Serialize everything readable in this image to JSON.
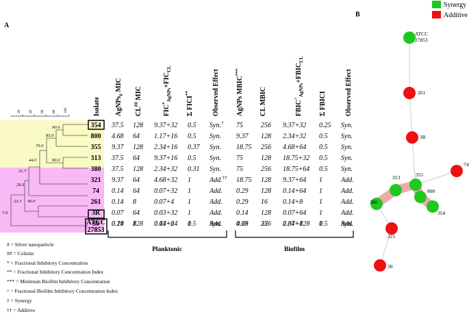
{
  "panels": {
    "a": "A",
    "b": "B"
  },
  "legend_top": {
    "synergy": {
      "label": "Synergy",
      "color": "#1fc81f"
    },
    "additive": {
      "label": "Additive",
      "color": "#ee1111"
    }
  },
  "colors": {
    "yellow_band": "#fafac4",
    "pink_band": "#f9b8f6",
    "highlight": "#f1a9a9"
  },
  "dendro_scale": [
    "20",
    "40",
    "60",
    "80",
    "100"
  ],
  "headers": {
    "isolate": "Isolate",
    "ag_mic": {
      "main": "AgNPs",
      "sub": "#",
      "tail": " MIC"
    },
    "cl_mic": {
      "main": "CL",
      "sup": "##",
      "tail": " MIC"
    },
    "fic": {
      "main": "FIC",
      "sup": "*",
      "sub1": "AgNPs",
      "mid": "+FIC",
      "sub2": "CL"
    },
    "fici": {
      "main": "Σ FICI",
      "sup": "**"
    },
    "obs1": "Observed Effect",
    "ag_mbic": {
      "main": "AgNPs MBIC",
      "sup": "***"
    },
    "cl_mbic": "CL MBIC",
    "fbic": {
      "main": "FBIC",
      "sup": "^",
      "sub1": "AgNPs",
      "mid": "+FBIC",
      "sub2": "CL"
    },
    "fbici": "Σ FBICI",
    "obs2": "Observed Effect"
  },
  "rows": [
    {
      "isolate": "354",
      "ag_mic": "37.5",
      "cl_mic": "128",
      "fic": "9.37+32",
      "fici": "0.5",
      "obs": "Syn.",
      "obs_mark": "†",
      "ag_mbic": "75",
      "cl_mbic": "256",
      "fbic": "9.37+32",
      "fbici": "0.25",
      "obs2": "Syn."
    },
    {
      "isolate": "800",
      "ag_mic": "4.68",
      "cl_mic": "64",
      "fic": "1.17+16",
      "fici": "0.5",
      "obs": "Syn.",
      "obs_mark": "",
      "ag_mbic": "9.37",
      "cl_mbic": "128",
      "fbic": "2.34+32",
      "fbici": "0.5",
      "obs2": "Syn."
    },
    {
      "isolate": "355",
      "ag_mic": "9.37",
      "cl_mic": "128",
      "fic": "2.34+16",
      "fici": "0.37",
      "obs": "Syn.",
      "obs_mark": "",
      "ag_mbic": "18.75",
      "cl_mbic": "256",
      "fbic": "4.68+64",
      "fbici": "0.5",
      "obs2": "Syn."
    },
    {
      "isolate": "313",
      "ag_mic": "37.5",
      "cl_mic": "64",
      "fic": "9.37+16",
      "fici": "0.5",
      "obs": "Syn.",
      "obs_mark": "",
      "ag_mbic": "75",
      "cl_mbic": "128",
      "fbic": "18.75+32",
      "fbici": "0.5",
      "obs2": "Syn."
    },
    {
      "isolate": "380",
      "ag_mic": "37.5",
      "cl_mic": "128",
      "fic": "2.34+32",
      "fici": "0.31",
      "obs": "Syn.",
      "obs_mark": "",
      "ag_mbic": "75",
      "cl_mbic": "256",
      "fbic": "18.75+64",
      "fbici": "0.5",
      "obs2": "Syn."
    },
    {
      "isolate": "321",
      "ag_mic": "9.37",
      "cl_mic": "64",
      "fic": "4.68+32",
      "fici": "1",
      "obs": "Add.",
      "obs_mark": "††",
      "ag_mbic": "18.75",
      "cl_mbic": "128",
      "fbic": "9.37+64",
      "fbici": "1",
      "obs2": "Add."
    },
    {
      "isolate": "74",
      "ag_mic": "0.14",
      "cl_mic": "64",
      "fic": "0.07+32",
      "fici": "1",
      "obs": "Add.",
      "obs_mark": "",
      "ag_mbic": "0.29",
      "cl_mbic": "128",
      "fbic": "0.14+64",
      "fbici": "1",
      "obs2": "Add."
    },
    {
      "isolate": "261",
      "ag_mic": "0.14",
      "cl_mic": "8",
      "fic": "0.07+4",
      "fici": "1",
      "obs": "Add.",
      "obs_mark": "",
      "ag_mbic": "0.29",
      "cl_mbic": "16",
      "fbic": "0.14+8",
      "fbici": "1",
      "obs2": "Add."
    },
    {
      "isolate": "3R",
      "ag_mic": "0.07",
      "cl_mic": "64",
      "fic": "0.03+32",
      "fici": "1",
      "obs": "Add.",
      "obs_mark": "",
      "ag_mbic": "0.14",
      "cl_mbic": "128",
      "fbic": "0.07+64",
      "fbici": "1",
      "obs2": "Add."
    },
    {
      "isolate": "30",
      "ag_mic": "0.29",
      "cl_mic": "128",
      "fic": "0.14+64",
      "fici": "1",
      "obs": "Add.",
      "obs_mark": "",
      "ag_mbic": "4.68",
      "cl_mbic": "256",
      "fbic": "2.34+128",
      "fbici": "1",
      "obs2": "Add."
    },
    {
      "isolate": "ATCC 27853",
      "ag_mic": "0.14",
      "cl_mic": "8",
      "fic": "0.03+2",
      "fici": "0.5",
      "obs": "Syn.",
      "obs_mark": "",
      "ag_mbic": "0.29",
      "cl_mbic": "32",
      "fbic": "0.07+8",
      "fbici": "0.5",
      "obs2": "Syn."
    }
  ],
  "bootstrap": [
    "90.0",
    "85.0",
    "70.0",
    "90.0",
    "44.0",
    "31.7",
    "29.3",
    "40.0",
    "23.3",
    "7.0"
  ],
  "groups": {
    "planktonic": "Planktonic",
    "biofilm": "Biofilm"
  },
  "footnotes": [
    "# = Silver nanoparticle",
    "## = Colistin",
    "* = Fractional Inhibitory Concentration",
    "** = Fractional Inhibitory Concentration Index",
    "*** = Minimum Biofilm Inhibitory Concentration",
    "^ = Fractional Biofilm Inhibitory Concentration Index",
    "† = Synergy",
    "†† = Additive"
  ],
  "network": {
    "nodes": [
      {
        "label": "ATCC 27853",
        "effect": "synergy"
      },
      {
        "label": "261",
        "effect": "additive"
      },
      {
        "label": "3R",
        "effect": "additive"
      },
      {
        "label": "355",
        "effect": "synergy"
      },
      {
        "label": "74",
        "effect": "additive"
      },
      {
        "label": "313",
        "effect": "synergy"
      },
      {
        "label": "380",
        "effect": "synergy"
      },
      {
        "label": "800",
        "effect": "synergy"
      },
      {
        "label": "354",
        "effect": "synergy"
      },
      {
        "label": "321",
        "effect": "additive"
      },
      {
        "label": "30",
        "effect": "additive"
      }
    ]
  }
}
